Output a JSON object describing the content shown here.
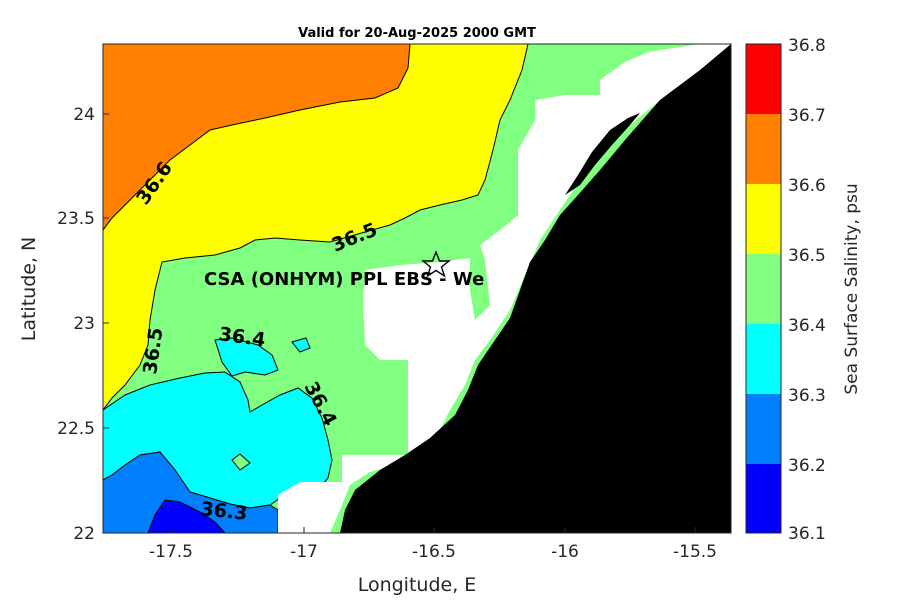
{
  "title": "Valid for 20-Aug-2025 2000 GMT",
  "x_axis": {
    "label": "Longitude, E",
    "ticks": [
      "-17.5",
      "-17",
      "-16.5",
      "-16",
      "-15.5"
    ]
  },
  "y_axis": {
    "label": "Latitude, N",
    "ticks": [
      "24",
      "23.5",
      "23",
      "22.5",
      "22"
    ]
  },
  "colorbar": {
    "label": "Sea Surface Salinity, psu",
    "ticks": [
      "36.8",
      "36.7",
      "36.6",
      "36.5",
      "36.4",
      "36.3",
      "36.2",
      "36.1"
    ],
    "colors": [
      "#ff0000",
      "#ff8000",
      "#ffff00",
      "#80ff80",
      "#00ffff",
      "#0080ff",
      "#0000ff"
    ]
  },
  "contour_labels": [
    "36.6",
    "36.5",
    "36.5",
    "36.4",
    "36.4",
    "36.3"
  ],
  "station_label": "CSA (ONHYM) PPL EBS  - We",
  "colors": {
    "land": "#000000",
    "contour_line": "#000000"
  },
  "chart_data": {
    "type": "heatmap",
    "title": "Valid for 20-Aug-2025 2000 GMT",
    "xlabel": "Longitude, E",
    "ylabel": "Latitude, N",
    "xlim": [
      -17.75,
      -15.35
    ],
    "ylim": [
      22.0,
      24.33
    ],
    "colorbar_label": "Sea Surface Salinity, psu",
    "levels": [
      36.1,
      36.2,
      36.3,
      36.4,
      36.5,
      36.6,
      36.7,
      36.8
    ],
    "contour_labels": [
      36.6,
      36.5,
      36.5,
      36.4,
      36.4,
      36.3
    ],
    "station": {
      "name": "CSA (ONHYM) PPL EBS  - We",
      "lon": -16.49,
      "lat": 23.29
    }
  }
}
